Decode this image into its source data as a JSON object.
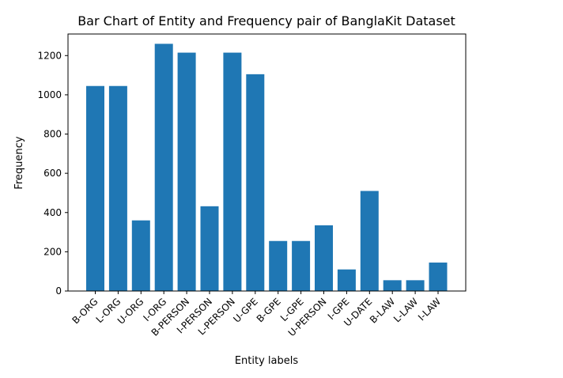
{
  "chart_data": {
    "type": "bar",
    "title": "Bar Chart of Entity and Frequency pair of BanglaKit Dataset",
    "xlabel": "Entity labels",
    "ylabel": "Frequency",
    "categories": [
      "B-ORG",
      "L-ORG",
      "U-ORG",
      "I-ORG",
      "B-PERSON",
      "I-PERSON",
      "L-PERSON",
      "U-GPE",
      "B-GPE",
      "L-GPE",
      "U-PERSON",
      "I-GPE",
      "U-DATE",
      "B-LAW",
      "L-LAW",
      "I-LAW"
    ],
    "values": [
      1045,
      1045,
      360,
      1260,
      1215,
      432,
      1215,
      1105,
      255,
      255,
      335,
      110,
      510,
      55,
      55,
      145
    ],
    "ylim": [
      0,
      1310
    ],
    "yticks": [
      0,
      200,
      400,
      600,
      800,
      1000,
      1200
    ],
    "grid": false,
    "bar_color": "#1f77b4"
  }
}
